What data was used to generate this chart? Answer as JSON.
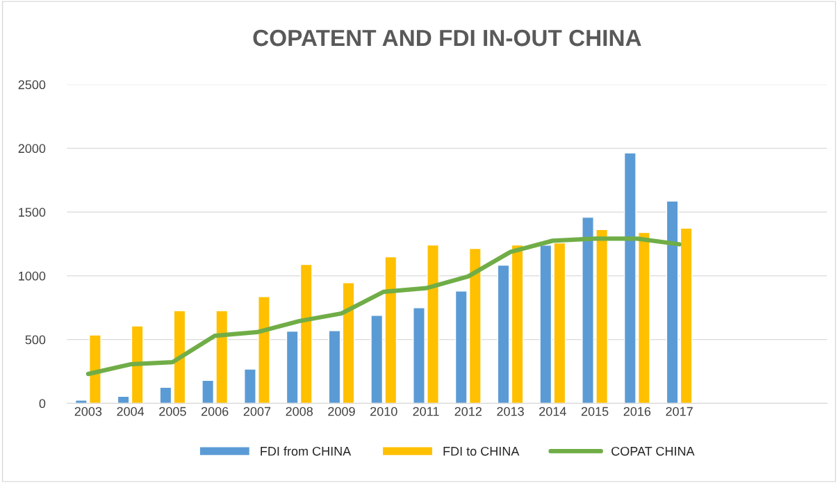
{
  "chart_data": {
    "type": "bar",
    "title": "COPATENT AND FDI IN-OUT CHINA",
    "categories": [
      "2003",
      "2004",
      "2005",
      "2006",
      "2007",
      "2008",
      "2009",
      "2010",
      "2011",
      "2012",
      "2013",
      "2014",
      "2015",
      "2016",
      "2017",
      null,
      null,
      null
    ],
    "series": [
      {
        "name": "FDI from CHINA",
        "color": "#5b9bd5",
        "values": [
          25,
          55,
          125,
          180,
          268,
          565,
          570,
          690,
          750,
          880,
          1083,
          1240,
          1460,
          1964,
          1586,
          null,
          null,
          null
        ]
      },
      {
        "name": "FDI to CHINA",
        "color": "#ffc000",
        "values": [
          536,
          607,
          727,
          727,
          837,
          1089,
          946,
          1149,
          1242,
          1214,
          1242,
          1258,
          1362,
          1340,
          1373,
          null,
          null,
          null
        ]
      },
      {
        "name": "COPAT CHINA",
        "type": "line",
        "color": "#70ad47",
        "values": [
          230,
          306,
          323,
          530,
          558,
          645,
          705,
          875,
          903,
          995,
          1187,
          1275,
          1291,
          1291,
          1247,
          null,
          null,
          null
        ]
      }
    ],
    "ylim": [
      0,
      2500
    ],
    "yticks": [
      0,
      500,
      1000,
      1500,
      2000,
      2500
    ],
    "grid": "y",
    "legend": "bottom",
    "marker": "none",
    "line_style": "solid"
  }
}
